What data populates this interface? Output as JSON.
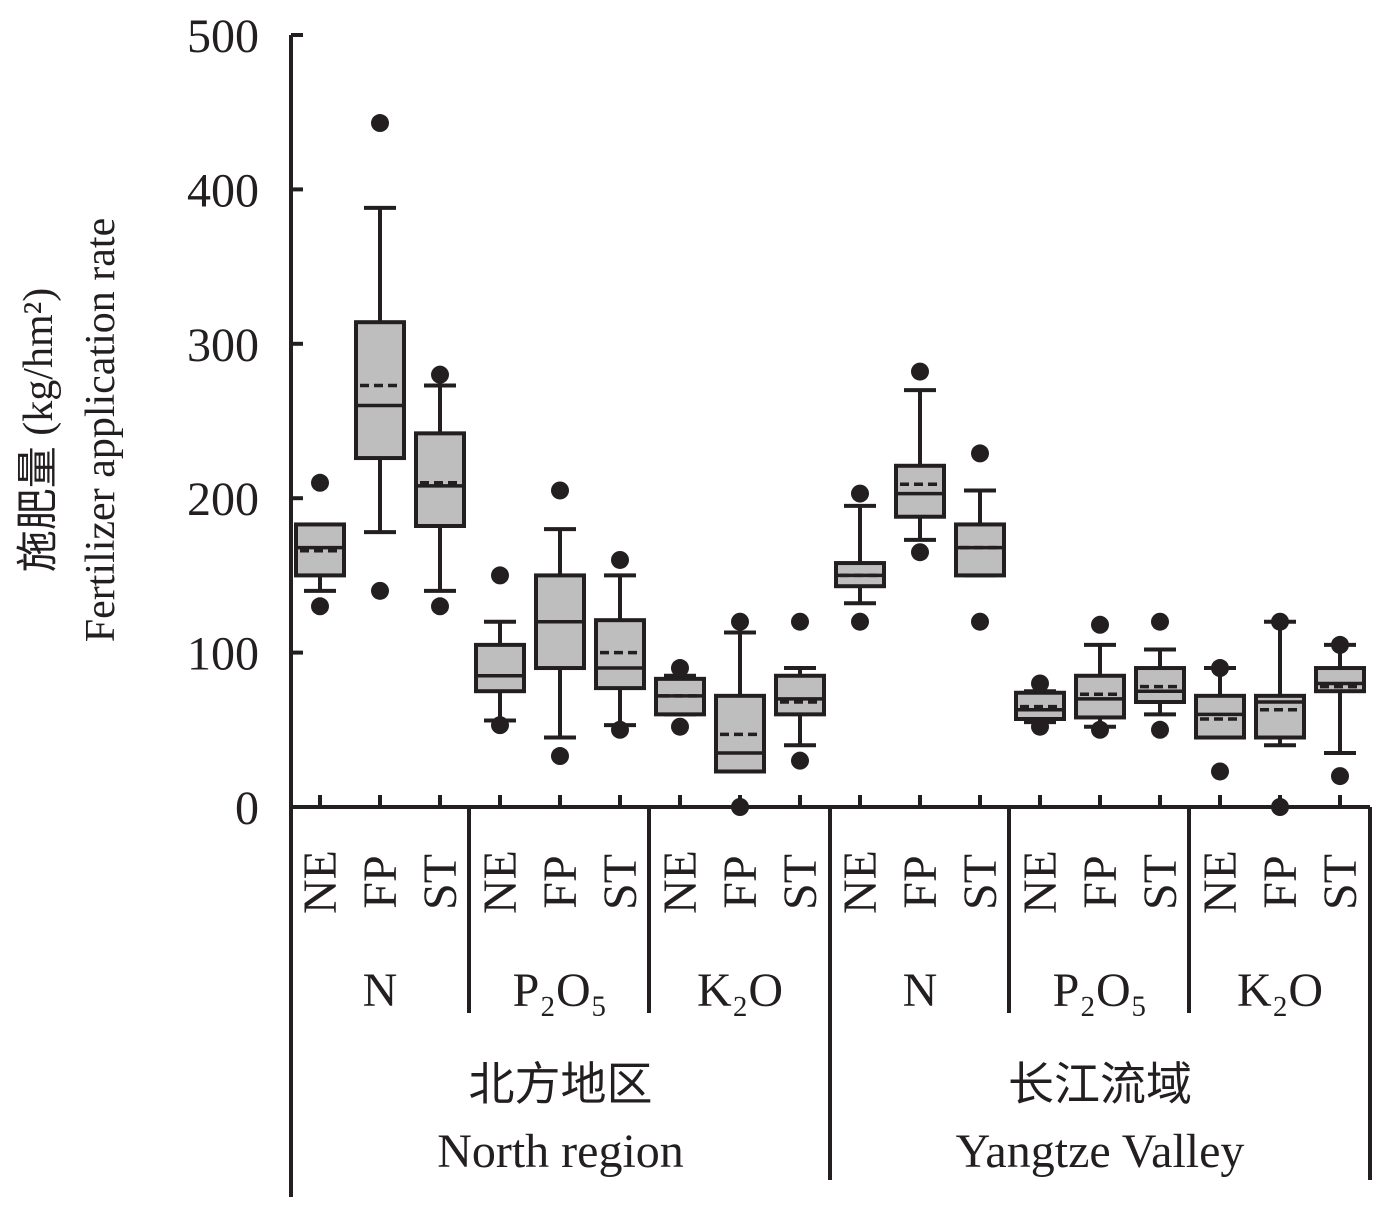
{
  "chart_data": {
    "type": "box",
    "ylabel_lines": [
      "施肥量 (kg/hm²)",
      "Fertilizer application rate"
    ],
    "ylim": [
      0,
      500
    ],
    "yticks": [
      "0",
      "100",
      "200",
      "300",
      "400",
      "500"
    ],
    "treatment_labels": [
      "NE",
      "FP",
      "ST"
    ],
    "nutrient_labels": [
      "N",
      "P₂O₅",
      "K₂O"
    ],
    "regions": [
      {
        "name_cn": "北方地区",
        "name_en": "North region"
      },
      {
        "name_cn": "长江流域",
        "name_en": "Yangtze Valley"
      }
    ],
    "legend": "none",
    "grid": false,
    "boxes": [
      {
        "region": "North region",
        "nutrient": "N",
        "treatment": "NE",
        "whisker_low": 140,
        "q1": 150,
        "median": 168,
        "mean": 166,
        "q3": 183,
        "whisker_high": 183,
        "outliers": [
          130,
          210
        ]
      },
      {
        "region": "North region",
        "nutrient": "N",
        "treatment": "FP",
        "whisker_low": 178,
        "q1": 226,
        "median": 260,
        "mean": 273,
        "q3": 314,
        "whisker_high": 388,
        "outliers": [
          140,
          443
        ]
      },
      {
        "region": "North region",
        "nutrient": "N",
        "treatment": "ST",
        "whisker_low": 140,
        "q1": 182,
        "median": 208,
        "mean": 210,
        "q3": 242,
        "whisker_high": 273,
        "outliers": [
          130,
          280
        ]
      },
      {
        "region": "North region",
        "nutrient": "P2O5",
        "treatment": "NE",
        "whisker_low": 56,
        "q1": 75,
        "median": 85,
        "mean": 85,
        "q3": 105,
        "whisker_high": 120,
        "outliers": [
          53,
          150
        ]
      },
      {
        "region": "North region",
        "nutrient": "P2O5",
        "treatment": "FP",
        "whisker_low": 45,
        "q1": 90,
        "median": 120,
        "mean": 120,
        "q3": 150,
        "whisker_high": 180,
        "outliers": [
          33,
          205
        ]
      },
      {
        "region": "North region",
        "nutrient": "P2O5",
        "treatment": "ST",
        "whisker_low": 53,
        "q1": 77,
        "median": 90,
        "mean": 100,
        "q3": 121,
        "whisker_high": 150,
        "outliers": [
          50,
          160
        ]
      },
      {
        "region": "North region",
        "nutrient": "K2O",
        "treatment": "NE",
        "whisker_low": 60,
        "q1": 60,
        "median": 72,
        "mean": 72,
        "q3": 83,
        "whisker_high": 85,
        "outliers": [
          52,
          90
        ]
      },
      {
        "region": "North region",
        "nutrient": "K2O",
        "treatment": "FP",
        "whisker_low": 23,
        "q1": 23,
        "median": 35,
        "mean": 47,
        "q3": 72,
        "whisker_high": 113,
        "outliers": [
          0,
          120
        ]
      },
      {
        "region": "North region",
        "nutrient": "K2O",
        "treatment": "ST",
        "whisker_low": 40,
        "q1": 60,
        "median": 70,
        "mean": 68,
        "q3": 85,
        "whisker_high": 90,
        "outliers": [
          30,
          120
        ]
      },
      {
        "region": "Yangtze Valley",
        "nutrient": "N",
        "treatment": "NE",
        "whisker_low": 132,
        "q1": 143,
        "median": 150,
        "mean": 150,
        "q3": 158,
        "whisker_high": 195,
        "outliers": [
          120,
          203
        ]
      },
      {
        "region": "Yangtze Valley",
        "nutrient": "N",
        "treatment": "FP",
        "whisker_low": 173,
        "q1": 188,
        "median": 203,
        "mean": 209,
        "q3": 221,
        "whisker_high": 270,
        "outliers": [
          165,
          282
        ]
      },
      {
        "region": "Yangtze Valley",
        "nutrient": "N",
        "treatment": "ST",
        "whisker_low": 150,
        "q1": 150,
        "median": 168,
        "mean": 168,
        "q3": 183,
        "whisker_high": 205,
        "outliers": [
          120,
          229
        ]
      },
      {
        "region": "Yangtze Valley",
        "nutrient": "P2O5",
        "treatment": "NE",
        "whisker_low": 55,
        "q1": 57,
        "median": 63,
        "mean": 65,
        "q3": 74,
        "whisker_high": 75,
        "outliers": [
          52,
          80
        ]
      },
      {
        "region": "Yangtze Valley",
        "nutrient": "P2O5",
        "treatment": "FP",
        "whisker_low": 52,
        "q1": 58,
        "median": 70,
        "mean": 73,
        "q3": 85,
        "whisker_high": 105,
        "outliers": [
          50,
          118
        ]
      },
      {
        "region": "Yangtze Valley",
        "nutrient": "P2O5",
        "treatment": "ST",
        "whisker_low": 60,
        "q1": 68,
        "median": 75,
        "mean": 78,
        "q3": 90,
        "whisker_high": 102,
        "outliers": [
          50,
          120
        ]
      },
      {
        "region": "Yangtze Valley",
        "nutrient": "K2O",
        "treatment": "NE",
        "whisker_low": 45,
        "q1": 45,
        "median": 60,
        "mean": 57,
        "q3": 72,
        "whisker_high": 90,
        "outliers": [
          23,
          90
        ]
      },
      {
        "region": "Yangtze Valley",
        "nutrient": "K2O",
        "treatment": "FP",
        "whisker_low": 40,
        "q1": 45,
        "median": 68,
        "mean": 63,
        "q3": 72,
        "whisker_high": 120,
        "outliers": [
          0,
          120
        ]
      },
      {
        "region": "Yangtze Valley",
        "nutrient": "K2O",
        "treatment": "ST",
        "whisker_low": 35,
        "q1": 75,
        "median": 80,
        "mean": 78,
        "q3": 90,
        "whisker_high": 105,
        "outliers": [
          20,
          105
        ]
      }
    ]
  },
  "colors": {
    "box_fill": "#bebebe",
    "stroke": "#231f20",
    "background": "#ffffff"
  }
}
